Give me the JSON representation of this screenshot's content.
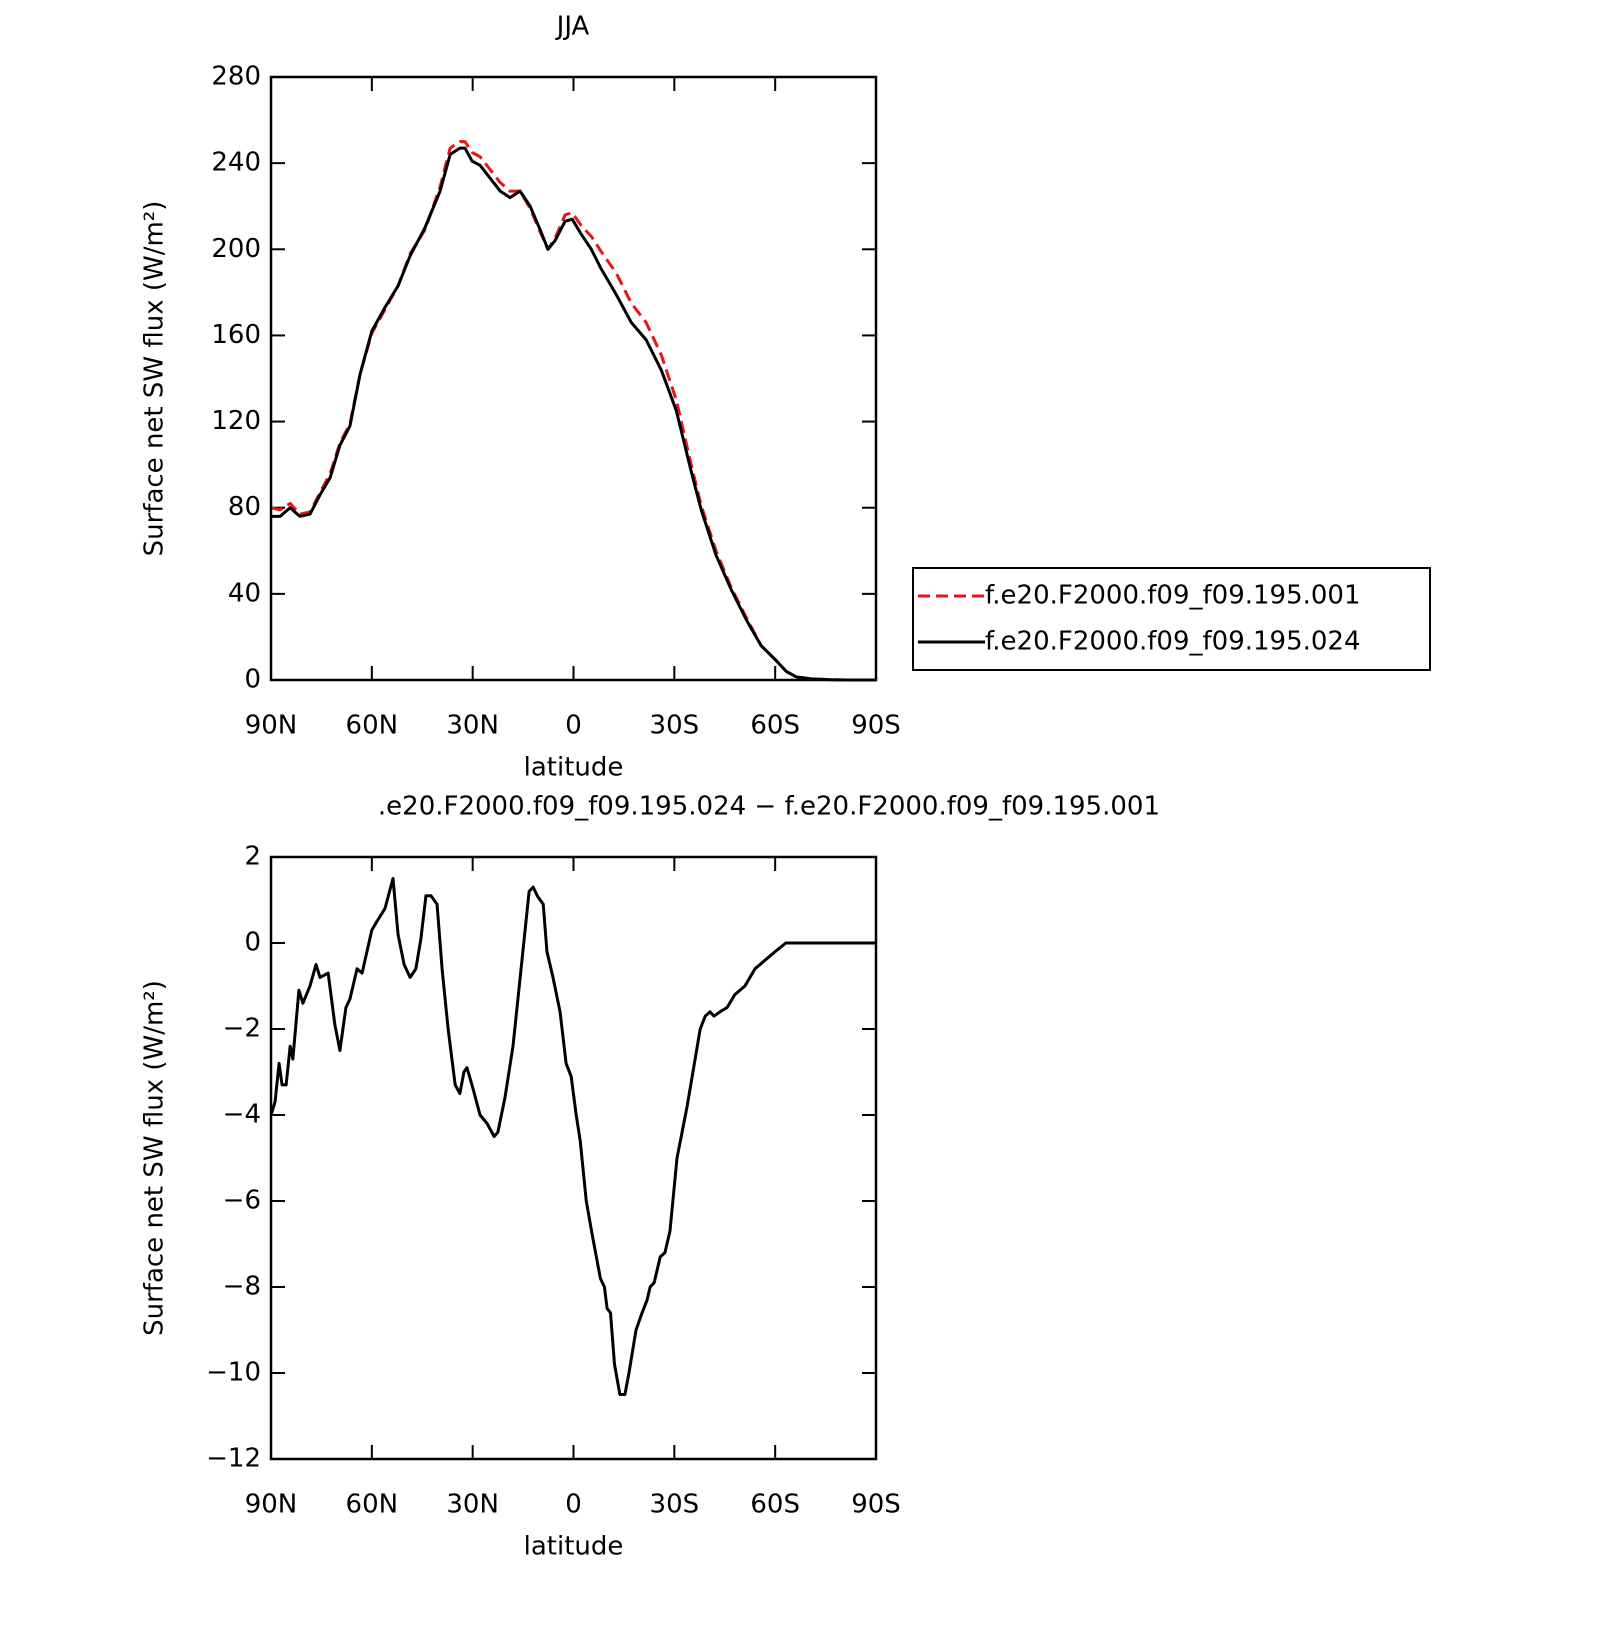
{
  "chart_data": [
    {
      "type": "line",
      "title": "JJA",
      "xlabel": "latitude",
      "ylabel": "Surface net SW flux (W/m²)",
      "xlim": [
        90,
        -90
      ],
      "xticks": [
        {
          "value": 90,
          "label": "90N"
        },
        {
          "value": 60,
          "label": "60N"
        },
        {
          "value": 30,
          "label": "30N"
        },
        0,
        {
          "value": -30,
          "label": "30S"
        },
        {
          "value": -60,
          "label": "60S"
        },
        {
          "value": -90,
          "label": "90S"
        }
      ],
      "ylim": [
        0,
        280
      ],
      "yticks": [
        0,
        40,
        80,
        120,
        160,
        200,
        240,
        280
      ],
      "legend": "right",
      "x": [
        90,
        87.3,
        84.3,
        81.4,
        78.4,
        75.4,
        72.4,
        69.5,
        66.5,
        63.5,
        60,
        56.1,
        52.2,
        48.6,
        44.2,
        39.7,
        36.7,
        33.8,
        32.3,
        30.2,
        27.8,
        24.8,
        21.8,
        18.9,
        15.9,
        12.9,
        9.9,
        7.6,
        5.5,
        2.5,
        0.4,
        -2.3,
        -5.3,
        -8.2,
        -12.7,
        -17.2,
        -21.6,
        -26.1,
        -30.6,
        -35,
        -38,
        -42.4,
        -46.9,
        -51.4,
        -55.8,
        -60.3,
        -63.3,
        -66.3,
        -70.8,
        -76.8,
        -81,
        -90
      ],
      "series": [
        {
          "name": "f.e20.F2000.f09_f09.195.001",
          "color": "#e8161b",
          "dash": true,
          "values": [
            80,
            79,
            82,
            77,
            78,
            87,
            96,
            110,
            119,
            142,
            161,
            172,
            183,
            198,
            209,
            229,
            247,
            250,
            250,
            245,
            243,
            237,
            231,
            227,
            227,
            219,
            208,
            200,
            205,
            216,
            217,
            211,
            206,
            199,
            189,
            175,
            166,
            151,
            130,
            100,
            81,
            60,
            43,
            29,
            16,
            9,
            4,
            1.4,
            0.5,
            0.1,
            0,
            0
          ]
        },
        {
          "name": "f.e20.F2000.f09_f09.195.024",
          "color": "#000000",
          "dash": false,
          "values": [
            76,
            76,
            80,
            76,
            77,
            86,
            94,
            109,
            118,
            142,
            162,
            173,
            183,
            197,
            210,
            227,
            244,
            247,
            247,
            241,
            239,
            233,
            227,
            224,
            227,
            220,
            209,
            200,
            204,
            213,
            214,
            207,
            200,
            191,
            179,
            166,
            158,
            144,
            125,
            97,
            79,
            58,
            42,
            28,
            16,
            9,
            4,
            1.4,
            0.5,
            0.1,
            0,
            0
          ]
        }
      ]
    },
    {
      "type": "line",
      "title": ".e20.F2000.f09_f09.195.024 − f.e20.F2000.f09_f09.195.001",
      "xlabel": "latitude",
      "ylabel": "Surface net SW flux (W/m²)",
      "xlim": [
        90,
        -90
      ],
      "xticks": [
        {
          "value": 90,
          "label": "90N"
        },
        {
          "value": 60,
          "label": "60N"
        },
        {
          "value": 30,
          "label": "30N"
        },
        0,
        {
          "value": -30,
          "label": "30S"
        },
        {
          "value": -60,
          "label": "60S"
        },
        {
          "value": -90,
          "label": "90S"
        }
      ],
      "ylim": [
        -12,
        2
      ],
      "yticks": [
        {
          "value": -12,
          "label": "−12"
        },
        {
          "value": -10,
          "label": "−10"
        },
        {
          "value": -8,
          "label": "−8"
        },
        {
          "value": -6,
          "label": "−6"
        },
        {
          "value": -4,
          "label": "−4"
        },
        {
          "value": -2,
          "label": "−2"
        },
        0,
        2
      ],
      "color": "#000000",
      "x": [
        90,
        88.8,
        87.6,
        86.7,
        85.5,
        84.3,
        83.5,
        81.7,
        80.5,
        78.4,
        76.6,
        75.4,
        73,
        71,
        69.5,
        67.7,
        66.5,
        64.4,
        62.9,
        60,
        58.5,
        56.1,
        53.7,
        52.2,
        50.4,
        48.6,
        46.9,
        45.4,
        43.9,
        42.4,
        40.6,
        39.1,
        37.3,
        35.2,
        33.8,
        32.6,
        31.7,
        30.2,
        27.8,
        25.7,
        23.6,
        22.5,
        20.4,
        18,
        15.6,
        13.2,
        12,
        10.8,
        9,
        7.9,
        6.1,
        4,
        2.2,
        0.7,
        -0.8,
        -2,
        -3.8,
        -5.6,
        -8,
        -9.2,
        -10,
        -11,
        -12.2,
        -13.8,
        -15.3,
        -16.5,
        -18.6,
        -20.4,
        -21.9,
        -22.8,
        -24,
        -25.8,
        -27.2,
        -28.7,
        -30.8,
        -33.8,
        -37.7,
        -39.2,
        -40.6,
        -41.8,
        -43.6,
        -45.7,
        -48,
        -51,
        -54,
        -57,
        -60,
        -63.2,
        -67.4,
        -76.3,
        -90
      ],
      "values": [
        -4,
        -3.7,
        -2.8,
        -3.3,
        -3.3,
        -2.4,
        -2.7,
        -1.1,
        -1.4,
        -1,
        -0.5,
        -0.8,
        -0.7,
        -1.9,
        -2.5,
        -1.5,
        -1.3,
        -0.6,
        -0.7,
        0.3,
        0.5,
        0.8,
        1.5,
        0.2,
        -0.5,
        -0.8,
        -0.6,
        0.1,
        1.1,
        1.1,
        0.9,
        -0.6,
        -2,
        -3.3,
        -3.5,
        -3,
        -2.9,
        -3.3,
        -4,
        -4.2,
        -4.5,
        -4.4,
        -3.6,
        -2.4,
        -0.6,
        1.2,
        1.3,
        1.1,
        0.9,
        -0.2,
        -0.8,
        -1.6,
        -2.8,
        -3.1,
        -4,
        -4.6,
        -6,
        -6.8,
        -7.8,
        -8,
        -8.5,
        -8.6,
        -9.8,
        -10.5,
        -10.5,
        -10,
        -9,
        -8.6,
        -8.3,
        -8,
        -7.9,
        -7.3,
        -7.2,
        -6.7,
        -5,
        -3.8,
        -2,
        -1.7,
        -1.6,
        -1.7,
        -1.6,
        -1.5,
        -1.2,
        -1,
        -0.6,
        -0.4,
        -0.2,
        0,
        0,
        0,
        0
      ]
    }
  ]
}
